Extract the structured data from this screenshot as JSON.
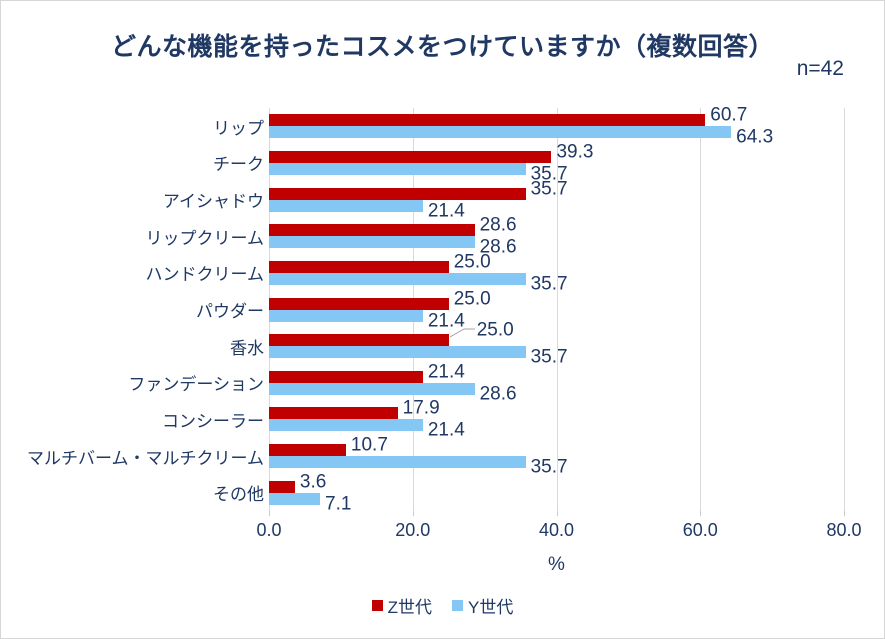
{
  "title": "どんな機能を持ったコスメをつけていますか（複数回答）",
  "sample_size_label": "n=42",
  "chart_data": {
    "type": "bar",
    "orientation": "horizontal",
    "title": "どんな機能を持ったコスメをつけていますか（複数回答）",
    "annotation": "n=42",
    "categories": [
      "リップ",
      "チーク",
      "アイシャドウ",
      "リップクリーム",
      "ハンドクリーム",
      "パウダー",
      "香水",
      "ファンデーション",
      "コンシーラー",
      "マルチバーム・マルチクリーム",
      "その他"
    ],
    "series": [
      {
        "name": "Z世代",
        "color": "#C00000",
        "values": [
          60.7,
          39.3,
          35.7,
          28.6,
          25.0,
          25.0,
          25.0,
          21.4,
          17.9,
          10.7,
          3.6
        ]
      },
      {
        "name": "Y世代",
        "color": "#84C7F5",
        "values": [
          64.3,
          35.7,
          21.4,
          28.6,
          35.7,
          21.4,
          35.7,
          28.6,
          21.4,
          35.7,
          7.1
        ]
      }
    ],
    "xlabel": "%",
    "xlim": [
      0,
      80
    ],
    "xticks": [
      "0.0",
      "20.0",
      "40.0",
      "60.0",
      "80.0"
    ],
    "grid": true,
    "legend_position": "bottom",
    "data_labels": "outside-end, one decimal",
    "label_callouts": [
      {
        "series": "Z世代",
        "category": "香水"
      }
    ]
  },
  "colors": {
    "text_navy": "#1F3864",
    "gridline": "#D9D9D9",
    "leader_line": "#A6A6A6",
    "background": "#FFFFFF"
  }
}
